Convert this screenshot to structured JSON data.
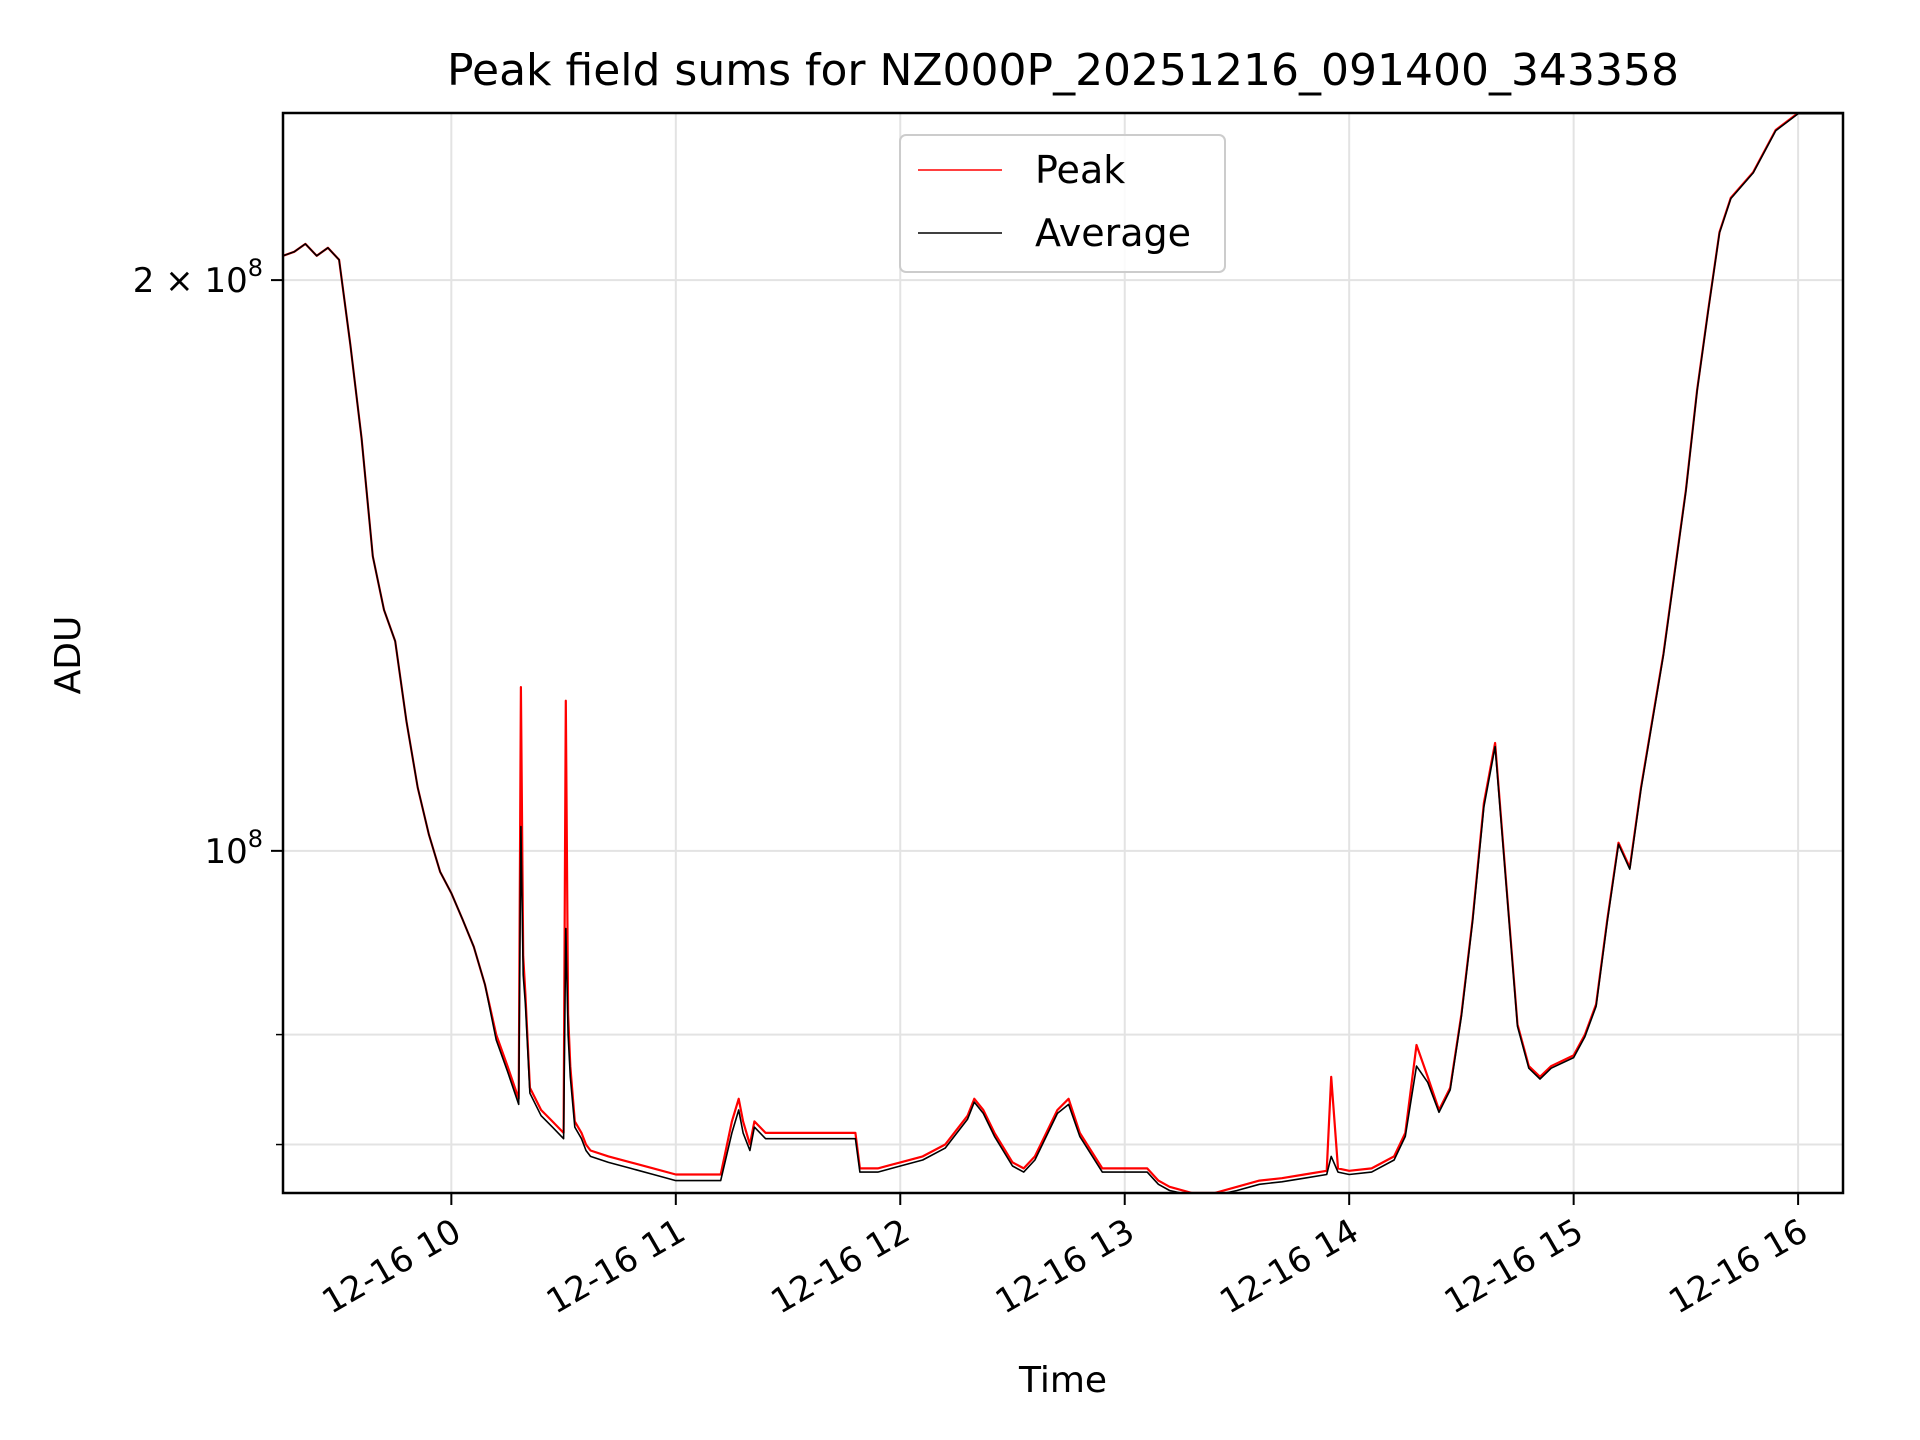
{
  "chart_data": {
    "type": "line",
    "title": "Peak field sums for NZ000P_20251216_091400_343358",
    "xlabel": "Time",
    "ylabel": "ADU",
    "yscale": "log",
    "xlim": [
      9.25,
      16.2
    ],
    "ylim": [
      66000000,
      245000000
    ],
    "grid": true,
    "legend_position": "top-center",
    "x_ticks": [
      {
        "value": 10,
        "label": "12-16 10"
      },
      {
        "value": 11,
        "label": "12-16 11"
      },
      {
        "value": 12,
        "label": "12-16 12"
      },
      {
        "value": 13,
        "label": "12-16 13"
      },
      {
        "value": 14,
        "label": "12-16 14"
      },
      {
        "value": 15,
        "label": "12-16 15"
      },
      {
        "value": 16,
        "label": "12-16 16"
      }
    ],
    "y_ticks": [
      {
        "value": 100000000,
        "base": "10",
        "exp": "8",
        "mantissa": ""
      },
      {
        "value": 200000000,
        "base": "10",
        "exp": "8",
        "mantissa": "2 × "
      }
    ],
    "y_minor_ticks": [
      70000000,
      80000000
    ],
    "series": [
      {
        "name": "Peak",
        "color": "#ff0000",
        "x": [
          9.25,
          9.3,
          9.35,
          9.4,
          9.45,
          9.5,
          9.55,
          9.6,
          9.65,
          9.7,
          9.75,
          9.8,
          9.85,
          9.9,
          9.95,
          10.0,
          10.05,
          10.1,
          10.15,
          10.2,
          10.25,
          10.3,
          10.31,
          10.32,
          10.33,
          10.35,
          10.4,
          10.45,
          10.5,
          10.51,
          10.52,
          10.53,
          10.55,
          10.58,
          10.6,
          10.62,
          10.7,
          10.8,
          10.9,
          11.0,
          11.1,
          11.2,
          11.25,
          11.28,
          11.3,
          11.33,
          11.35,
          11.4,
          11.5,
          11.6,
          11.7,
          11.8,
          11.82,
          11.9,
          12.0,
          12.1,
          12.2,
          12.3,
          12.33,
          12.37,
          12.42,
          12.5,
          12.55,
          12.6,
          12.7,
          12.75,
          12.8,
          12.9,
          13.0,
          13.1,
          13.15,
          13.2,
          13.3,
          13.4,
          13.5,
          13.6,
          13.7,
          13.8,
          13.9,
          13.92,
          13.95,
          14.0,
          14.1,
          14.2,
          14.25,
          14.3,
          14.35,
          14.4,
          14.45,
          14.5,
          14.55,
          14.6,
          14.65,
          14.7,
          14.75,
          14.8,
          14.85,
          14.9,
          15.0,
          15.05,
          15.1,
          15.15,
          15.2,
          15.25,
          15.3,
          15.4,
          15.5,
          15.55,
          15.6,
          15.65,
          15.7,
          15.8,
          15.9,
          16.0,
          16.2
        ],
        "y": [
          206000000,
          207000000,
          209000000,
          206000000,
          208000000,
          205000000,
          185000000,
          165000000,
          143000000,
          134000000,
          129000000,
          117000000,
          108000000,
          102000000,
          97500000,
          95000000,
          92000000,
          89000000,
          85000000,
          80000000,
          77000000,
          74000000,
          122000000,
          88000000,
          84000000,
          75000000,
          73000000,
          72000000,
          71000000,
          120000000,
          82000000,
          77000000,
          72000000,
          71000000,
          70000000,
          69500000,
          69000000,
          68500000,
          68000000,
          67500000,
          67500000,
          67500000,
          72000000,
          74000000,
          72000000,
          70000000,
          72000000,
          71000000,
          71000000,
          71000000,
          71000000,
          71000000,
          68000000,
          68000000,
          68500000,
          69000000,
          70000000,
          72500000,
          74000000,
          73000000,
          71000000,
          68500000,
          68000000,
          69000000,
          73000000,
          74000000,
          71000000,
          68000000,
          68000000,
          68000000,
          67000000,
          66500000,
          66000000,
          66000000,
          66500000,
          67000000,
          67200000,
          67500000,
          67800000,
          76000000,
          68000000,
          67800000,
          68000000,
          69000000,
          71000000,
          79000000,
          76000000,
          73000000,
          75000000,
          82000000,
          92000000,
          106000000,
          114000000,
          96000000,
          81000000,
          77000000,
          76000000,
          77000000,
          78000000,
          80000000,
          83000000,
          92000000,
          101000000,
          98000000,
          108000000,
          127000000,
          155000000,
          175000000,
          193000000,
          212000000,
          221000000,
          228000000,
          240000000,
          245000000,
          245000000
        ]
      },
      {
        "name": "Average",
        "color": "#000000",
        "x": [
          9.25,
          9.3,
          9.35,
          9.4,
          9.45,
          9.5,
          9.55,
          9.6,
          9.65,
          9.7,
          9.75,
          9.8,
          9.85,
          9.9,
          9.95,
          10.0,
          10.05,
          10.1,
          10.15,
          10.2,
          10.25,
          10.3,
          10.31,
          10.32,
          10.33,
          10.35,
          10.4,
          10.45,
          10.5,
          10.51,
          10.52,
          10.53,
          10.55,
          10.58,
          10.6,
          10.62,
          10.7,
          10.8,
          10.9,
          11.0,
          11.1,
          11.2,
          11.25,
          11.28,
          11.3,
          11.33,
          11.35,
          11.4,
          11.5,
          11.6,
          11.7,
          11.8,
          11.82,
          11.9,
          12.0,
          12.1,
          12.2,
          12.3,
          12.33,
          12.37,
          12.42,
          12.5,
          12.55,
          12.6,
          12.7,
          12.75,
          12.8,
          12.9,
          13.0,
          13.1,
          13.15,
          13.2,
          13.3,
          13.4,
          13.5,
          13.6,
          13.7,
          13.8,
          13.9,
          13.92,
          13.95,
          14.0,
          14.1,
          14.2,
          14.25,
          14.3,
          14.35,
          14.4,
          14.45,
          14.5,
          14.55,
          14.6,
          14.65,
          14.7,
          14.75,
          14.8,
          14.85,
          14.9,
          15.0,
          15.05,
          15.1,
          15.15,
          15.2,
          15.25,
          15.3,
          15.4,
          15.5,
          15.55,
          15.6,
          15.65,
          15.7,
          15.8,
          15.9,
          16.0,
          16.2
        ],
        "y": [
          206000000,
          207000000,
          209000000,
          206000000,
          208000000,
          205000000,
          185000000,
          165000000,
          143000000,
          134000000,
          129000000,
          117000000,
          108000000,
          102000000,
          97500000,
          95000000,
          92000000,
          89000000,
          85000000,
          79500000,
          76500000,
          73500000,
          103000000,
          86000000,
          83000000,
          74500000,
          72500000,
          71500000,
          70500000,
          91000000,
          80000000,
          76000000,
          71500000,
          70500000,
          69500000,
          69000000,
          68500000,
          68000000,
          67500000,
          67000000,
          67000000,
          67000000,
          71000000,
          73000000,
          71000000,
          69500000,
          71500000,
          70500000,
          70500000,
          70500000,
          70500000,
          70500000,
          67700000,
          67700000,
          68200000,
          68700000,
          69700000,
          72200000,
          73700000,
          72700000,
          70700000,
          68200000,
          67700000,
          68700000,
          72700000,
          73500000,
          70700000,
          67700000,
          67700000,
          67700000,
          66700000,
          66200000,
          65800000,
          65800000,
          66200000,
          66700000,
          66900000,
          67200000,
          67500000,
          69000000,
          67700000,
          67500000,
          67700000,
          68700000,
          70700000,
          77000000,
          75500000,
          72800000,
          74800000,
          81800000,
          91800000,
          105500000,
          113500000,
          95800000,
          80800000,
          76800000,
          75800000,
          76800000,
          77800000,
          79800000,
          82800000,
          91800000,
          100800000,
          97800000,
          107800000,
          126800000,
          154800000,
          174800000,
          192800000,
          211800000,
          220800000,
          227800000,
          239800000,
          244800000,
          244800000
        ]
      }
    ]
  }
}
